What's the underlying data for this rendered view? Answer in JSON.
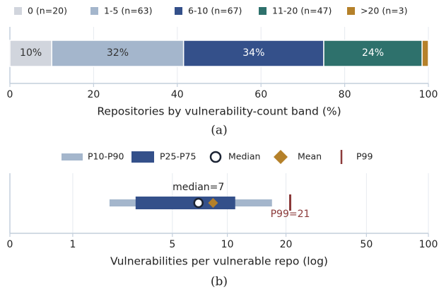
{
  "chart_data": [
    {
      "type": "stacked_bar",
      "series": [
        {
          "name": "0 (n=20)",
          "color": "#d1d5dd",
          "values": [
            10
          ],
          "value_labels": [
            "10%"
          ]
        },
        {
          "name": "1-5 (n=63)",
          "color": "#a4b6cc",
          "values": [
            31.5
          ],
          "value_labels": [
            "32%"
          ]
        },
        {
          "name": "6-10 (n=67)",
          "color": "#34508a",
          "values": [
            33.5
          ],
          "value_labels": [
            "34%"
          ]
        },
        {
          "name": "11-20 (n=47)",
          "color": "#2e716c",
          "values": [
            23.5
          ],
          "value_labels": [
            "24%"
          ]
        },
        {
          "name": ">20 (n=3)",
          "color": "#b5812a",
          "values": [
            1.5
          ]
        }
      ],
      "xlabel": "Repositories by vulnerability-count band (%)",
      "caption": "(a)",
      "xlim": [
        0,
        100
      ],
      "xticks": [
        0,
        20,
        40,
        60,
        80,
        100
      ],
      "grid": true
    },
    {
      "type": "range_box",
      "xscale": "log1p",
      "legend": [
        {
          "name": "P10-P90",
          "color": "#a4b6cc"
        },
        {
          "name": "P25-P75",
          "color": "#34508a"
        },
        {
          "name": "Median",
          "color": "#1b2333"
        },
        {
          "name": "Mean",
          "color": "#b5812a"
        },
        {
          "name": "P99",
          "color": "#8b3a3a"
        }
      ],
      "stats": {
        "p10": 2,
        "p25": 3,
        "median": 7,
        "mean": 8.4,
        "p75": 11,
        "p90": 17,
        "p99": 21
      },
      "annotations": [
        "median=7",
        "P99=21"
      ],
      "xlabel": "Vulnerabilities per vulnerable repo (log)",
      "caption": "(b)",
      "xlim": [
        0,
        100
      ],
      "xticks": [
        0,
        1,
        5,
        10,
        20,
        50,
        100
      ],
      "grid": true
    }
  ]
}
